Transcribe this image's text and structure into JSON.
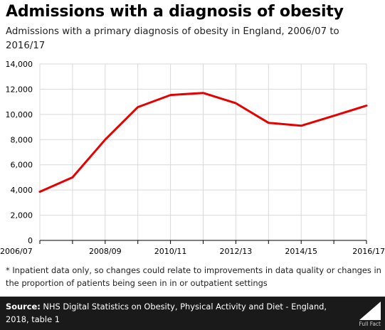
{
  "title": "Admissions with a diagnosis of obesity",
  "subtitle": "Admissions with a primary diagnosis of obesity in England, 2006/07 to 2016/17",
  "note": "* Inpatient data only, so changes could relate to improvements in data quality or changes in the proportion of patients being seen in in or outpatient settings",
  "source": {
    "label": "Source:",
    "text": " NHS Digital Statistics on Obesity, Physical Activity and Diet - England, 2018, table 1"
  },
  "logo": {
    "text": "Full Fact"
  },
  "colors": {
    "line": "#e60000",
    "footer": "#1a1a1a",
    "grid": "#d9d9d9"
  },
  "chart_data": {
    "type": "line",
    "x": [
      "2006/07",
      "2007/08",
      "2008/09",
      "2009/10",
      "2010/11",
      "2011/12",
      "2012/13",
      "2013/14",
      "2014/15",
      "2015/16",
      "2016/17"
    ],
    "x_tick_labels": [
      "2006/07",
      "2008/09",
      "2010/11",
      "2012/13",
      "2014/15",
      "2016/17"
    ],
    "series": [
      {
        "values": [
          3860,
          5000,
          8000,
          10580,
          11540,
          11700,
          10890,
          9330,
          9100,
          9890,
          10700
        ],
        "color": "#e60000"
      }
    ],
    "ylim": [
      0,
      14000
    ],
    "y_ticks": [
      0,
      2000,
      4000,
      6000,
      8000,
      10000,
      12000,
      14000
    ],
    "y_tick_labels": [
      "0",
      "2,000",
      "4,000",
      "6,000",
      "8,000",
      "10,000",
      "12,000",
      "14,000"
    ],
    "grid": "horizontal"
  }
}
